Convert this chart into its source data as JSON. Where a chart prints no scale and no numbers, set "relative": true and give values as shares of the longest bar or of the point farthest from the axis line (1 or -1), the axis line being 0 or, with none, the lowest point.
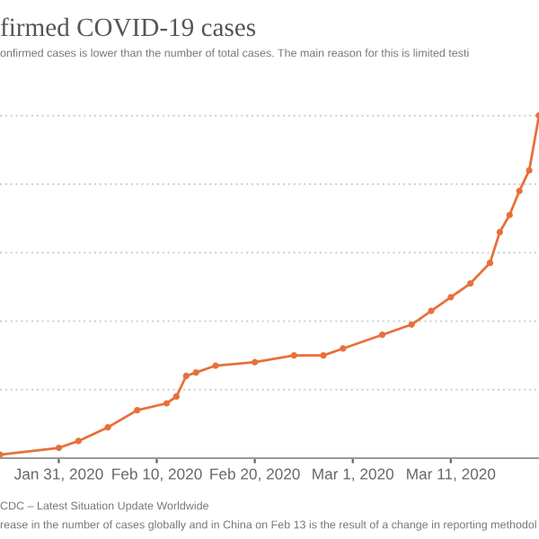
{
  "chart_data": {
    "type": "line",
    "title": "firmed COVID-19 cases",
    "subtitle": "onfirmed cases is lower than the number of total cases. The main reason for this is limited testi",
    "annotations": [
      "CDC – Latest Situation Update Worldwide",
      "rease in the number of cases globally and in China on Feb 13 is the result of a change in reporting methodol"
    ],
    "relative": true,
    "x": [
      "2020-01-25",
      "2020-01-31",
      "2020-02-02",
      "2020-02-05",
      "2020-02-08",
      "2020-02-11",
      "2020-02-12",
      "2020-02-13",
      "2020-02-14",
      "2020-02-16",
      "2020-02-20",
      "2020-02-24",
      "2020-02-27",
      "2020-02-29",
      "2020-03-04",
      "2020-03-07",
      "2020-03-09",
      "2020-03-11",
      "2020-03-13",
      "2020-03-15",
      "2020-03-16",
      "2020-03-17",
      "2020-03-18",
      "2020-03-19",
      "2020-03-20"
    ],
    "series": [
      {
        "color": "#e8703a",
        "values": [
          0.01,
          0.03,
          0.05,
          0.09,
          0.14,
          0.16,
          0.18,
          0.24,
          0.25,
          0.27,
          0.28,
          0.3,
          0.3,
          0.32,
          0.36,
          0.39,
          0.43,
          0.47,
          0.51,
          0.57,
          0.66,
          0.71,
          0.78,
          0.84,
          1
        ]
      }
    ],
    "xlim": [
      "2020-01-25",
      "2020-03-20"
    ],
    "xticks": [
      {
        "value": "2020-01-31",
        "label": "Jan 31, 2020"
      },
      {
        "value": "2020-02-10",
        "label": "Feb 10, 2020"
      },
      {
        "value": "2020-02-20",
        "label": "Feb 20, 2020"
      },
      {
        "value": "2020-03-01",
        "label": "Mar 1, 2020"
      },
      {
        "value": "2020-03-11",
        "label": "Mar 11, 2020"
      }
    ],
    "grid": "y",
    "marker": "circle",
    "line_style": "solid",
    "legend": false
  }
}
